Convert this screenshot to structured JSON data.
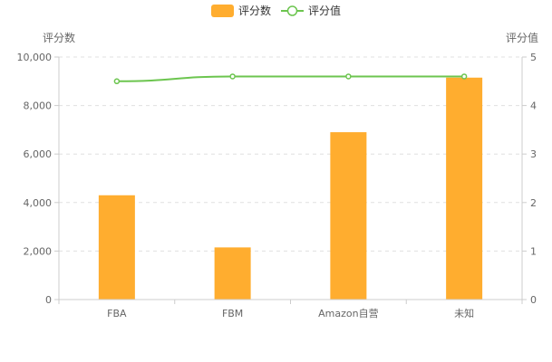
{
  "chart_data": {
    "type": "bar",
    "categories": [
      "FBA",
      "FBM",
      "Amazon自营",
      "未知"
    ],
    "series": [
      {
        "name": "评分数",
        "type": "bar",
        "axis": "left",
        "color": "#ffad2f",
        "values": [
          4300,
          2150,
          6900,
          9150
        ]
      },
      {
        "name": "评分值",
        "type": "line",
        "axis": "right",
        "color": "#6cc54f",
        "values": [
          4.5,
          4.6,
          4.6,
          4.6
        ]
      }
    ],
    "yleft": {
      "name": "评分数",
      "lim": [
        0,
        10000
      ],
      "ticks": [
        0,
        2000,
        4000,
        6000,
        8000,
        10000
      ],
      "tick_labels": [
        "0",
        "2,000",
        "4,000",
        "6,000",
        "8,000",
        "10,000"
      ]
    },
    "yright": {
      "name": "评分值",
      "lim": [
        0,
        5
      ],
      "ticks": [
        0,
        1,
        2,
        3,
        4,
        5
      ],
      "tick_labels": [
        "0",
        "1",
        "2",
        "3",
        "4",
        "5"
      ]
    },
    "grid": true,
    "legend_position": "top-center"
  }
}
